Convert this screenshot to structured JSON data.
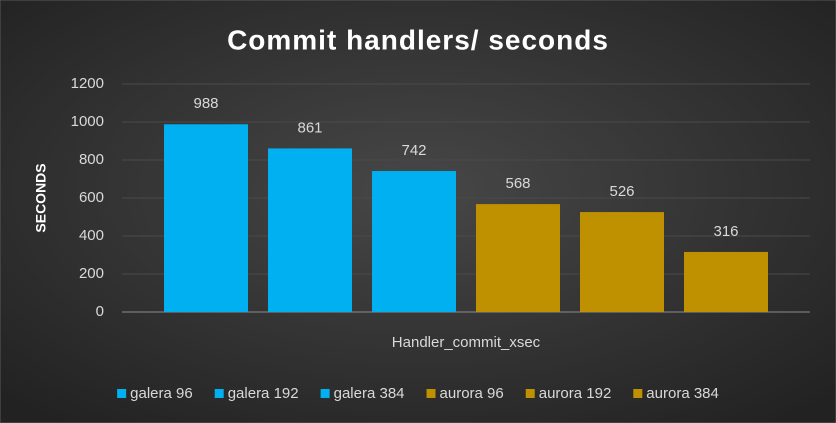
{
  "chart_data": {
    "type": "bar",
    "title": "Commit handlers/ seconds",
    "y_label": "SECONDS",
    "categories": [
      "Handler_commit_xsec"
    ],
    "series": [
      {
        "name": "galera 96",
        "color": "#00b0f0",
        "values": [
          988
        ]
      },
      {
        "name": "galera 192",
        "color": "#00b0f0",
        "values": [
          861
        ]
      },
      {
        "name": "galera 384",
        "color": "#00b0f0",
        "values": [
          742
        ]
      },
      {
        "name": "aurora 96",
        "color": "#bf9000",
        "values": [
          568
        ]
      },
      {
        "name": "aurora 192",
        "color": "#bf9000",
        "values": [
          526
        ]
      },
      {
        "name": "aurora 384",
        "color": "#bf9000",
        "values": [
          316
        ]
      }
    ],
    "ylim": [
      0,
      1200
    ],
    "yticks": [
      0,
      200,
      400,
      600,
      800,
      1000,
      1200
    ],
    "grid": true,
    "legend": "bottom"
  }
}
